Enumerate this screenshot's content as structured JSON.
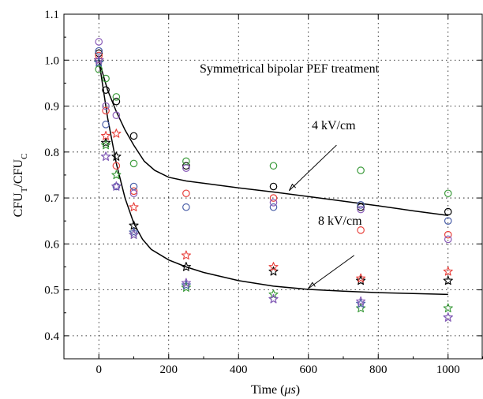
{
  "chart_data": {
    "type": "scatter",
    "title": "",
    "annotation_title": "Symmetrical bipolar PEF treatment",
    "xlabel": {
      "main": "Time (",
      "italic": "μs",
      "tail": ")"
    },
    "ylabel": {
      "a": "CFU",
      "sub_a": "T",
      "mid": "/CFU",
      "sub_b": "C"
    },
    "xlim": [
      -100,
      1100
    ],
    "ylim": [
      0.35,
      1.1
    ],
    "xticks": [
      0,
      200,
      400,
      600,
      800,
      1000
    ],
    "xtick_labels": [
      "0",
      "200",
      "400",
      "600",
      "800",
      "1000"
    ],
    "yticks": [
      0.4,
      0.5,
      0.6,
      0.7,
      0.8,
      0.9,
      1.0,
      1.1
    ],
    "ytick_labels": [
      "0.4",
      "0.5",
      "0.6",
      "0.7",
      "0.8",
      "0.9",
      "1.0",
      "1.1"
    ],
    "grid": true,
    "colors": {
      "black": "#000000",
      "red": "#e8413c",
      "green": "#3a9a3a",
      "blue": "#4a5fa8",
      "purple": "#8a5cb8"
    },
    "series": [
      {
        "marker": "circle",
        "color": "black",
        "x": [
          0,
          20,
          50,
          100,
          250,
          500,
          750,
          1000
        ],
        "y": [
          1.015,
          0.935,
          0.91,
          0.835,
          0.77,
          0.725,
          0.68,
          0.67
        ]
      },
      {
        "marker": "circle",
        "color": "red",
        "x": [
          0,
          20,
          50,
          100,
          250,
          500,
          750,
          1000
        ],
        "y": [
          1.01,
          0.89,
          0.77,
          0.715,
          0.71,
          0.7,
          0.63,
          0.62
        ]
      },
      {
        "marker": "circle",
        "color": "green",
        "x": [
          0,
          20,
          50,
          100,
          250,
          500,
          750,
          1000
        ],
        "y": [
          0.98,
          0.96,
          0.92,
          0.775,
          0.78,
          0.77,
          0.76,
          0.71
        ]
      },
      {
        "marker": "circle",
        "color": "blue",
        "x": [
          0,
          20,
          50,
          100,
          250,
          500,
          750,
          1000
        ],
        "y": [
          1.02,
          0.86,
          0.725,
          0.725,
          0.68,
          0.68,
          0.685,
          0.65
        ]
      },
      {
        "marker": "circle",
        "color": "purple",
        "x": [
          0,
          20,
          50,
          100,
          250,
          500,
          750,
          1000
        ],
        "y": [
          1.04,
          0.9,
          0.88,
          0.71,
          0.765,
          0.69,
          0.675,
          0.61
        ]
      },
      {
        "marker": "star",
        "color": "black",
        "x": [
          0,
          20,
          50,
          100,
          250,
          500,
          750,
          1000
        ],
        "y": [
          1.0,
          0.82,
          0.79,
          0.64,
          0.55,
          0.54,
          0.52,
          0.52
        ]
      },
      {
        "marker": "star",
        "color": "red",
        "x": [
          0,
          20,
          50,
          100,
          250,
          500,
          750,
          1000
        ],
        "y": [
          1.0,
          0.835,
          0.84,
          0.68,
          0.575,
          0.55,
          0.525,
          0.54
        ]
      },
      {
        "marker": "star",
        "color": "green",
        "x": [
          0,
          20,
          50,
          100,
          250,
          500,
          750,
          1000
        ],
        "y": [
          0.995,
          0.815,
          0.75,
          0.62,
          0.505,
          0.49,
          0.46,
          0.46
        ]
      },
      {
        "marker": "star",
        "color": "blue",
        "x": [
          0,
          20,
          50,
          100,
          250,
          500,
          750,
          1000
        ],
        "y": [
          0.995,
          0.79,
          0.725,
          0.625,
          0.51,
          0.48,
          0.47,
          0.44
        ]
      },
      {
        "marker": "star",
        "color": "purple",
        "x": [
          0,
          20,
          50,
          100,
          250,
          500,
          750,
          1000
        ],
        "y": [
          1.0,
          0.79,
          0.725,
          0.62,
          0.515,
          0.48,
          0.475,
          0.44
        ]
      }
    ],
    "fit_curves": [
      {
        "label": "4 kV/cm",
        "x": [
          0,
          25,
          50,
          75,
          100,
          130,
          160,
          200,
          250,
          300,
          400,
          500,
          600,
          700,
          800,
          900,
          1000
        ],
        "y": [
          1.0,
          0.935,
          0.888,
          0.848,
          0.815,
          0.78,
          0.76,
          0.745,
          0.737,
          0.732,
          0.722,
          0.713,
          0.703,
          0.693,
          0.683,
          0.672,
          0.662
        ]
      },
      {
        "label": "8 kV/cm",
        "x": [
          0,
          25,
          50,
          75,
          100,
          125,
          150,
          200,
          250,
          300,
          400,
          500,
          600,
          700,
          800,
          900,
          1000
        ],
        "y": [
          1.0,
          0.875,
          0.775,
          0.7,
          0.645,
          0.61,
          0.588,
          0.565,
          0.55,
          0.538,
          0.52,
          0.508,
          0.501,
          0.497,
          0.494,
          0.492,
          0.49
        ]
      }
    ],
    "annotations": [
      {
        "text": "4 kV/cm",
        "arrow_to": [
          545,
          0.716
        ]
      },
      {
        "text": "8 kV/cm",
        "arrow_to": [
          600,
          0.503
        ]
      }
    ]
  }
}
